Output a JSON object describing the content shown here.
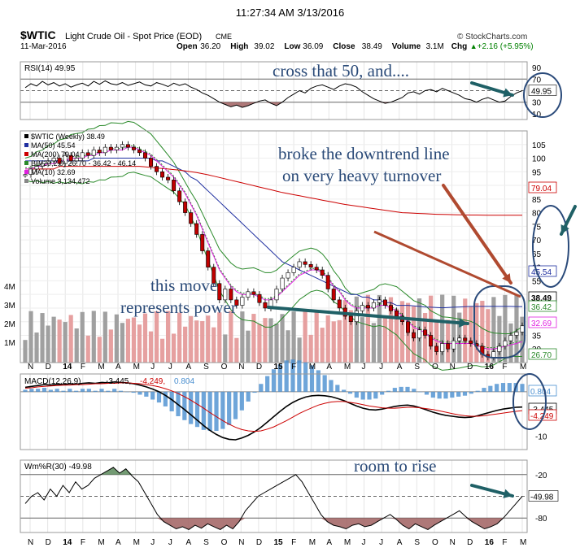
{
  "timestamp": "11:27:34 AM 3/13/2016",
  "header": {
    "symbol": "$WTIC",
    "name": "Light Crude Oil - Spot Price (EOD)",
    "exchange": "CME",
    "source": "© StockCharts.com",
    "date": "11-Mar-2016",
    "stats": [
      {
        "label": "Open",
        "value": "36.20"
      },
      {
        "label": "High",
        "value": "39.02"
      },
      {
        "label": "Low",
        "value": "36.09"
      },
      {
        "label": "Close",
        "value": "38.49"
      },
      {
        "label": "Volume",
        "value": "3.1M"
      },
      {
        "label": "Chg",
        "value": "+2.16 (+5.95%)"
      }
    ],
    "chg_color": "#008000",
    "up_arrow": "▲"
  },
  "colors": {
    "price_line": "#000000",
    "ma50": "#1f2fa0",
    "ma200": "#cc0000",
    "bb": "#2a8a2a",
    "ma10": "#e020e0",
    "volume_up": "#a0a0a0",
    "volume_down": "#e6a0a0",
    "macd_hist": "#4a8fd0",
    "williams_fill": "#a06060",
    "annotation_arrow_teal": "#1f6066",
    "annotation_arrow_red": "#b04a30",
    "annotation_circle": "#2a4a7a"
  },
  "annotations": {
    "rsi_note": "cross that 50, and....",
    "price_note_1": "broke the downtrend line",
    "price_note_2": "on very heavy turnover",
    "move_note_1": "this move",
    "move_note_2": "represents power",
    "williams_note": "room to rise"
  },
  "chart_data": [
    {
      "type": "line",
      "panel": "RSI",
      "legend": [
        {
          "label": "RSI(14)",
          "value": "49.95"
        }
      ],
      "y_ticks": [
        90,
        70,
        50,
        30,
        10
      ],
      "ylim": [
        0,
        100
      ],
      "reference_lines": [
        70,
        30
      ],
      "last_value_label": "49.95",
      "series": [
        {
          "name": "RSI(14)",
          "values": [
            55,
            62,
            58,
            66,
            60,
            64,
            58,
            62,
            56,
            60,
            63,
            58,
            66,
            61,
            67,
            62,
            60,
            64,
            59,
            62,
            65,
            60,
            58,
            64,
            61,
            57,
            63,
            59,
            62,
            56,
            52,
            46,
            42,
            36,
            30,
            26,
            22,
            25,
            21,
            24,
            28,
            32,
            34,
            28,
            24,
            30,
            38,
            44,
            50,
            46,
            54,
            58,
            60,
            56,
            52,
            58,
            62,
            60,
            56,
            48,
            42,
            36,
            32,
            28,
            30,
            34,
            38,
            46,
            48,
            44,
            50,
            52,
            48,
            54,
            50,
            46,
            42,
            36,
            34,
            30,
            35,
            38,
            34,
            30,
            32,
            40,
            46,
            49.95
          ]
        }
      ]
    },
    {
      "type": "line",
      "panel": "Price",
      "legend": [
        {
          "label": "$WTIC (Weekly)",
          "value": "38.49"
        },
        {
          "label": "MA(50)",
          "value": "45.54"
        },
        {
          "label": "MA(200)",
          "value": "79.04"
        },
        {
          "label": "BB(20,2.0)",
          "value": "26.70 - 36.42 - 46.14"
        },
        {
          "label": "MA(10)",
          "value": "32.69"
        },
        {
          "label": "Volume",
          "value": "3,134,472"
        }
      ],
      "y_ticks": [
        105,
        100,
        95,
        90,
        85,
        80,
        75,
        70,
        65,
        60,
        55,
        50,
        45,
        40,
        35,
        30
      ],
      "ylim": [
        25,
        110
      ],
      "right_labels": [
        "79.04",
        "45.54",
        "38.49",
        "36.42",
        "32.69",
        "26.70"
      ],
      "volume_ticks": [
        "4M",
        "3M",
        "2M",
        "1M"
      ],
      "x_labels": [
        "N",
        "D",
        "14",
        "F",
        "M",
        "A",
        "M",
        "J",
        "J",
        "A",
        "S",
        "O",
        "N",
        "D",
        "15",
        "F",
        "M",
        "A",
        "M",
        "J",
        "J",
        "A",
        "S",
        "O",
        "N",
        "D",
        "16",
        "F",
        "M"
      ],
      "series": [
        {
          "name": "$WTIC (Weekly)",
          "values": [
            94,
            96,
            97,
            98,
            99,
            100,
            98,
            101,
            99,
            100,
            102,
            101,
            103,
            102,
            104,
            103,
            104,
            105,
            104,
            103,
            102,
            100,
            97,
            95,
            93,
            92,
            88,
            84,
            80,
            76,
            72,
            66,
            60,
            54,
            48,
            52,
            48,
            46,
            49,
            51,
            50,
            47,
            45,
            48,
            52,
            56,
            58,
            60,
            62,
            61,
            60,
            59,
            57,
            52,
            48,
            45,
            42,
            40,
            44,
            46,
            45,
            47,
            48,
            46,
            44,
            42,
            40,
            36,
            34,
            37,
            35,
            31,
            29,
            32,
            30,
            33,
            34,
            33,
            32,
            31,
            28,
            27,
            29,
            31,
            33,
            35,
            36.2,
            38.49
          ]
        },
        {
          "name": "MA(50)",
          "values": [
            99,
            99,
            99,
            99,
            99,
            99,
            99,
            99,
            99,
            99,
            99,
            99,
            100,
            100,
            100,
            100,
            100,
            100,
            100,
            100,
            100,
            100,
            100,
            99,
            99,
            98,
            97,
            96,
            95,
            93,
            92,
            90,
            88,
            86,
            84,
            82,
            80,
            78,
            76,
            74,
            72,
            70,
            68,
            66,
            64,
            62,
            61,
            60,
            59,
            58,
            57,
            56,
            55,
            54,
            53,
            52,
            51,
            50,
            50,
            49,
            49,
            48,
            48,
            47,
            47,
            46,
            46,
            46,
            45.8,
            45.6,
            45.4,
            45.3,
            45.2,
            45.1,
            45.2,
            45.3,
            45.4,
            45.5,
            45.6,
            45.6,
            45.6,
            45.6,
            45.6,
            45.6,
            45.6,
            45.6,
            45.55,
            45.54
          ]
        },
        {
          "name": "MA(200)",
          "values": [
            96,
            96,
            96,
            96,
            96,
            96,
            97,
            97,
            97,
            97,
            97,
            97,
            97,
            97,
            97,
            97,
            97,
            97,
            97,
            97,
            97,
            96.8,
            96.6,
            96.4,
            96.2,
            96,
            95.8,
            95.6,
            95.3,
            95,
            94.7,
            94.3,
            93.9,
            93.4,
            92.9,
            92.4,
            91.9,
            91.4,
            90.9,
            90.4,
            89.9,
            89.4,
            88.9,
            88.4,
            87.9,
            87.4,
            87,
            86.6,
            86.2,
            85.8,
            85.4,
            85,
            84.6,
            84.2,
            83.8,
            83.4,
            83,
            82.7,
            82.4,
            82.1,
            81.8,
            81.5,
            81.2,
            80.9,
            80.6,
            80.3,
            80,
            79.9,
            79.8,
            79.7,
            79.6,
            79.5,
            79.4,
            79.35,
            79.3,
            79.25,
            79.2,
            79.17,
            79.14,
            79.12,
            79.1,
            79.08,
            79.07,
            79.06,
            79.05,
            79.05,
            79.04,
            79.04
          ]
        },
        {
          "name": "MA(10)",
          "values": [
            96,
            96,
            97,
            97,
            98,
            98,
            99,
            99,
            100,
            100,
            100,
            101,
            101,
            102,
            102,
            103,
            103,
            103,
            104,
            104,
            103,
            102,
            101,
            99,
            97,
            95,
            93,
            90,
            87,
            83,
            79,
            74,
            69,
            64,
            59,
            56,
            53,
            51,
            50,
            50,
            50,
            49,
            48,
            48,
            49,
            51,
            53,
            55,
            57,
            58,
            59,
            59,
            58,
            56,
            53,
            51,
            48,
            46,
            45,
            45,
            45,
            45,
            46,
            46,
            45,
            44,
            42,
            40,
            38,
            37,
            36,
            34,
            33,
            32,
            32,
            32,
            32,
            32,
            32,
            31.5,
            30.5,
            30,
            30,
            30.5,
            31,
            31.5,
            32,
            32.69
          ]
        }
      ]
    },
    {
      "type": "line",
      "panel": "MACD",
      "legend": [
        {
          "label": "MACD(12,26,9)",
          "value": "-3.445, -4.249, 0.804"
        }
      ],
      "y_ticks": [
        0,
        -10
      ],
      "ylim": [
        -13,
        4
      ],
      "right_labels": [
        "0.804",
        "-3.445",
        "-4.249"
      ],
      "series": [
        {
          "name": "MACD",
          "values": [
            1,
            1.2,
            1.4,
            1.6,
            1.5,
            1.7,
            1.6,
            1.8,
            1.7,
            1.9,
            2,
            1.9,
            2.1,
            2,
            2.2,
            2.1,
            2,
            1.8,
            1.5,
            1.1,
            0.6,
            0,
            -0.8,
            -1.8,
            -2.9,
            -4,
            -5.2,
            -6.4,
            -7.6,
            -8.7,
            -9.6,
            -10.3,
            -10.7,
            -10.8,
            -10.4,
            -9.8,
            -9,
            -8,
            -6.8,
            -5.6,
            -4.4,
            -3.3,
            -2.4,
            -1.7,
            -1.2,
            -0.9,
            -0.8,
            -0.9,
            -1.1,
            -1.5,
            -2,
            -2.6,
            -3.2,
            -3.7,
            -4,
            -4.1,
            -3.9,
            -3.6,
            -3.3,
            -3.1,
            -3,
            -3.2,
            -3.6,
            -4.1,
            -4.6,
            -5,
            -5.3,
            -5.5,
            -5.7,
            -5.8,
            -5.7,
            -5.4,
            -5,
            -4.6,
            -4.2,
            -3.9,
            -3.7,
            -3.5,
            -3.445
          ]
        },
        {
          "name": "Signal",
          "values": [
            0.8,
            0.9,
            1.1,
            1.2,
            1.3,
            1.4,
            1.5,
            1.5,
            1.6,
            1.6,
            1.7,
            1.8,
            1.8,
            1.9,
            1.9,
            2,
            2,
            1.9,
            1.8,
            1.6,
            1.4,
            1.1,
            0.7,
            0.2,
            -0.4,
            -1.1,
            -1.9,
            -2.8,
            -3.7,
            -4.7,
            -5.6,
            -6.5,
            -7.3,
            -8,
            -8.5,
            -8.8,
            -8.9,
            -8.8,
            -8.4,
            -7.9,
            -7.2,
            -6.5,
            -5.7,
            -4.9,
            -4.2,
            -3.6,
            -3,
            -2.6,
            -2.3,
            -2.2,
            -2.2,
            -2.4,
            -2.6,
            -2.9,
            -3.2,
            -3.4,
            -3.6,
            -3.7,
            -3.7,
            -3.6,
            -3.5,
            -3.5,
            -3.6,
            -3.8,
            -4,
            -4.3,
            -4.6,
            -4.9,
            -5.2,
            -5.4,
            -5.5,
            -5.5,
            -5.4,
            -5.2,
            -5,
            -4.8,
            -4.6,
            -4.4,
            -4.249
          ]
        }
      ]
    },
    {
      "type": "line",
      "panel": "Williams %R",
      "legend": [
        {
          "label": "Wm%R(30)",
          "value": "-49.98"
        }
      ],
      "y_ticks": [
        -20,
        -50,
        -80
      ],
      "ylim": [
        -100,
        0
      ],
      "reference_lines": [
        -20,
        -80
      ],
      "last_value_label": "-49.98",
      "series": [
        {
          "name": "Wm%R(30)",
          "values": [
            -60,
            -50,
            -45,
            -55,
            -40,
            -50,
            -35,
            -45,
            -30,
            -40,
            -35,
            -25,
            -20,
            -15,
            -10,
            -18,
            -12,
            -22,
            -30,
            -45,
            -60,
            -75,
            -85,
            -90,
            -95,
            -92,
            -96,
            -90,
            -94,
            -88,
            -92,
            -96,
            -90,
            -95,
            -85,
            -70,
            -60,
            -50,
            -45,
            -40,
            -35,
            -30,
            -25,
            -20,
            -30,
            -45,
            -60,
            -75,
            -85,
            -90,
            -92,
            -95,
            -90,
            -88,
            -92,
            -90,
            -85,
            -80,
            -75,
            -82,
            -90,
            -95,
            -88,
            -92,
            -96,
            -90,
            -85,
            -80,
            -75,
            -70,
            -78,
            -85,
            -90,
            -95,
            -92,
            -88,
            -80,
            -70,
            -60,
            -49.98
          ]
        }
      ],
      "x_labels": [
        "N",
        "D",
        "14",
        "F",
        "M",
        "A",
        "M",
        "J",
        "J",
        "A",
        "S",
        "O",
        "N",
        "D",
        "15",
        "F",
        "M",
        "A",
        "M",
        "J",
        "J",
        "A",
        "S",
        "O",
        "N",
        "D",
        "16",
        "F",
        "M"
      ]
    }
  ]
}
